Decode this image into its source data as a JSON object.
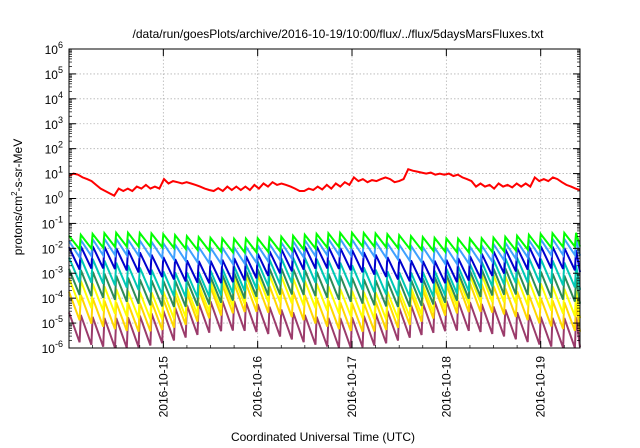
{
  "chart_data": {
    "type": "line",
    "title": "/data/run/goesPlots/archive/2016-10-19/10:00/flux/../flux/5daysMarsFluxes.txt",
    "xlabel": "Coordinated Universal Time (UTC)",
    "ylabel_parts": {
      "base": "protons/cm",
      "sup": "2",
      "rest": "-s-sr-MeV"
    },
    "yscale": "log",
    "ylim_exp": [
      -6,
      6
    ],
    "ytick_exps": [
      -6,
      -5,
      -4,
      -3,
      -2,
      -1,
      0,
      1,
      2,
      3,
      4,
      5,
      6
    ],
    "ytick_base": "10",
    "xlim_days": [
      "2016-10-14T00:00",
      "2016-10-19T10:00"
    ],
    "xticks": [
      "2016-10-15",
      "2016-10-16",
      "2016-10-17",
      "2016-10-18",
      "2016-10-19"
    ],
    "grid": true,
    "sawtooth_period_hours": 3,
    "series": [
      {
        "color": "#ff0000",
        "values": [
          8,
          10,
          9,
          7,
          6,
          5,
          3.5,
          2.5,
          2,
          1.6,
          1.3,
          2.5,
          2,
          2.5,
          2,
          3,
          2.5,
          3.5,
          2.5,
          3,
          2.5,
          6,
          4,
          5,
          4.5,
          4,
          4.5,
          4,
          3.5,
          3,
          2.5,
          2.2,
          2,
          2.6,
          2,
          3,
          2.2,
          3,
          2.2,
          3,
          2.2,
          3.5,
          2.5,
          4,
          3,
          4.5,
          3.5,
          4,
          3.5,
          3,
          2.5,
          2,
          2,
          2.5,
          2.2,
          3,
          2.3,
          3.5,
          2.5,
          4,
          3,
          4.5,
          3.5,
          7,
          5,
          6,
          4.5,
          5.5,
          5,
          6,
          7,
          6,
          4.5,
          5,
          6,
          15,
          13,
          12,
          11,
          10,
          11,
          9,
          10,
          9,
          10,
          8,
          9,
          7,
          6,
          5,
          3,
          4,
          3,
          3.5,
          2.5,
          4,
          3,
          3.5,
          2.8,
          4,
          3,
          4,
          3,
          7,
          5,
          6,
          5,
          7,
          6,
          4.5,
          3.5,
          3,
          2.5,
          2.2
        ]
      },
      {
        "color": "#00ff00",
        "mean": 0.018,
        "amp": 0.12,
        "drop": 0.55,
        "phase": 0.0
      },
      {
        "color": "#3fa0ff",
        "mean": 0.009,
        "amp": 0.18,
        "drop": 0.65,
        "phase": 0.05
      },
      {
        "color": "#0000cd",
        "mean": 0.0035,
        "amp": 0.3,
        "drop": 0.9,
        "phase": 0.1
      },
      {
        "color": "#00c8b4",
        "mean": 0.0012,
        "amp": 0.3,
        "drop": 1.0,
        "phase": 0.15
      },
      {
        "color": "#2e8b57",
        "mean": 0.0005,
        "amp": 0.25,
        "drop": 1.05,
        "phase": 0.2
      },
      {
        "color": "#ffff00",
        "mean": 0.00022,
        "amp": 0.35,
        "drop": 1.1,
        "phase": 0.25
      },
      {
        "color": "#ffd700",
        "mean": 9e-05,
        "amp": 0.4,
        "drop": 1.15,
        "phase": 0.3
      },
      {
        "color": "#9b3b6b",
        "mean": 2e-05,
        "amp": 0.35,
        "drop": 1.2,
        "phase": 0.35
      }
    ]
  }
}
